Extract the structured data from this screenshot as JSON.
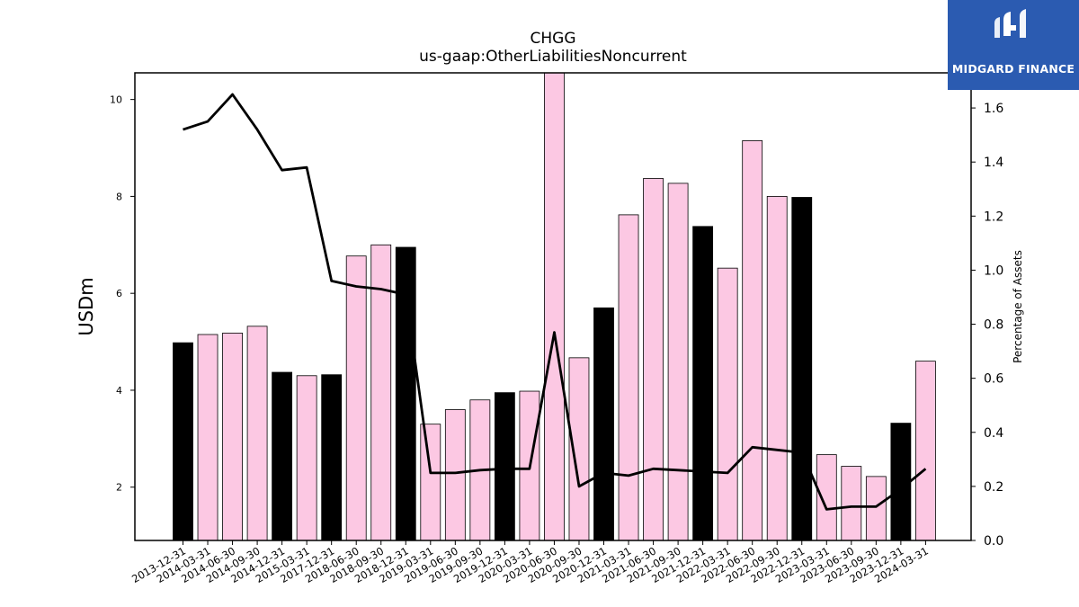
{
  "brand": {
    "name": "MIDGARD FINANCE",
    "bg_color": "#2b5bb1",
    "icon": "midgard-logo-icon"
  },
  "chart_data": {
    "type": "bar",
    "title": "CHGG",
    "subtitle": "us-gaap:OtherLiabilitiesNoncurrent",
    "ylabel": "USDm",
    "y2label": "Percentage of Assets",
    "ylim": [
      0.9,
      10.55
    ],
    "y2lim": [
      0.0,
      1.73
    ],
    "yticks": [
      2,
      4,
      6,
      8,
      10
    ],
    "y2ticks": [
      "0.0",
      "0.2",
      "0.4",
      "0.6",
      "0.8",
      "1.0",
      "1.2",
      "1.4",
      "1.6"
    ],
    "categories": [
      "2013-12-31",
      "2014-03-31",
      "2014-06-30",
      "2014-09-30",
      "2014-12-31",
      "2015-03-31",
      "2017-12-31",
      "2018-06-30",
      "2018-09-30",
      "2018-12-31",
      "2019-03-31",
      "2019-06-30",
      "2019-09-30",
      "2019-12-31",
      "2020-03-31",
      "2020-06-30",
      "2020-09-30",
      "2020-12-31",
      "2021-03-31",
      "2021-06-30",
      "2021-09-30",
      "2021-12-31",
      "2022-03-31",
      "2022-06-30",
      "2022-09-30",
      "2022-12-31",
      "2023-03-31",
      "2023-06-30",
      "2023-09-30",
      "2023-12-31",
      "2024-03-31"
    ],
    "series": [
      {
        "type": "bar",
        "values": [
          4.98,
          5.15,
          5.18,
          5.32,
          4.37,
          4.3,
          4.32,
          6.77,
          7.0,
          6.95,
          3.3,
          3.6,
          3.8,
          3.95,
          3.98,
          10.6,
          4.67,
          5.7,
          7.62,
          8.37,
          8.27,
          7.38,
          6.52,
          9.15,
          8.0,
          7.98,
          2.67,
          2.43,
          2.22,
          3.32,
          4.6
        ],
        "highlight": [
          true,
          false,
          false,
          false,
          true,
          false,
          true,
          false,
          false,
          true,
          false,
          false,
          false,
          true,
          false,
          false,
          false,
          true,
          false,
          false,
          false,
          true,
          false,
          false,
          false,
          true,
          false,
          false,
          false,
          true,
          false
        ],
        "color": "#fcc8e3",
        "highlight_color": "#000000"
      },
      {
        "type": "line",
        "axis": "right",
        "values": [
          1.52,
          1.55,
          1.65,
          1.52,
          1.37,
          1.38,
          0.96,
          0.94,
          0.93,
          0.91,
          0.25,
          0.25,
          0.26,
          0.265,
          0.265,
          0.77,
          0.2,
          0.25,
          0.24,
          0.265,
          0.26,
          0.255,
          0.25,
          0.345,
          0.335,
          0.325,
          0.115,
          0.125,
          0.125,
          0.19,
          0.265
        ],
        "color": "#000000"
      }
    ]
  }
}
